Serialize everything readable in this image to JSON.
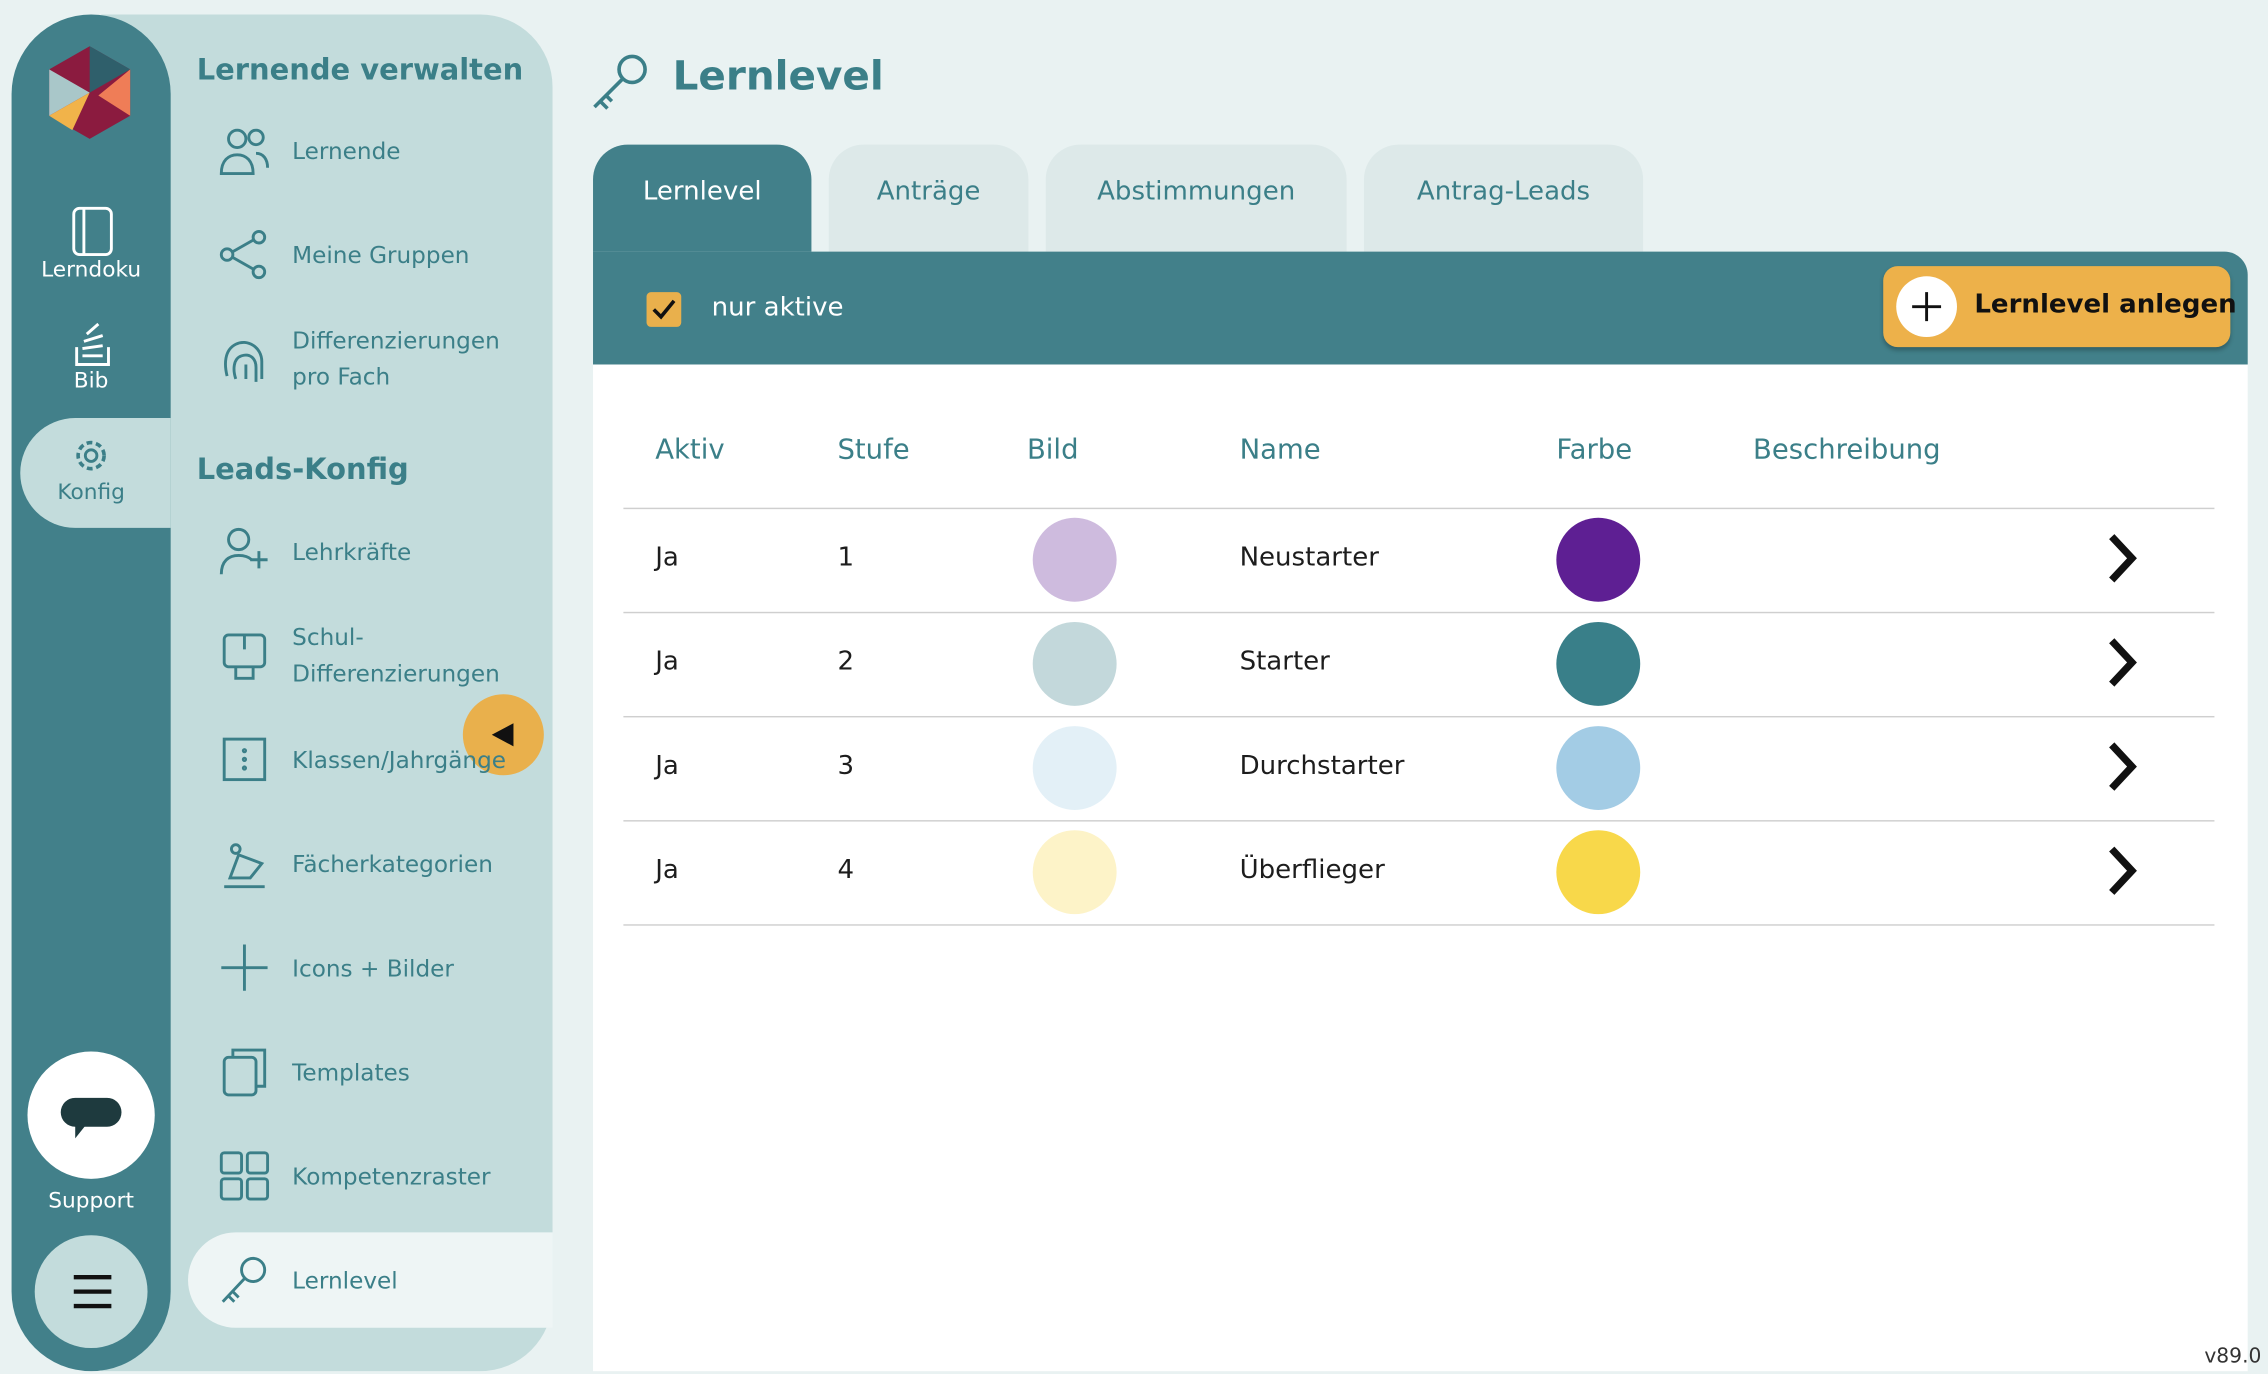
{
  "nav_rail": {
    "items": [
      "Lerndoku",
      "Bib",
      "Konfig"
    ],
    "support": "Support"
  },
  "sidebar": {
    "sections": [
      {
        "title": "Lernende verwalten",
        "items": [
          "Lernende",
          "Meine Gruppen",
          "Differenzierungen pro Fach"
        ]
      },
      {
        "title": "Leads-Konfig",
        "items": [
          "Lehrkräfte",
          "Schul-Differenzierungen",
          "Klassen/Jahrgänge",
          "Fächerkategorien",
          "Icons + Bilder",
          "Templates",
          "Kompetenzraster",
          "Lernlevel"
        ]
      }
    ]
  },
  "header": {
    "title": "Lernlevel"
  },
  "tabs": [
    "Lernlevel",
    "Anträge",
    "Abstimmungen",
    "Antrag-Leads"
  ],
  "toolbar": {
    "filter": "nur aktive",
    "button": "Lernlevel anlegen"
  },
  "table": {
    "columns": [
      "Aktiv",
      "Stufe",
      "Bild",
      "Name",
      "Farbe",
      "Beschreibung"
    ],
    "rows": [
      {
        "aktiv": "Ja",
        "stufe": 1,
        "name": "Neustarter",
        "farbe": "#5e1f93"
      },
      {
        "aktiv": "Ja",
        "stufe": 2,
        "name": "Starter",
        "farbe": "#397f89"
      },
      {
        "aktiv": "Ja",
        "stufe": 3,
        "name": "Durchstarter",
        "farbe": "#a3cce5"
      },
      {
        "aktiv": "Ja",
        "stufe": 4,
        "name": "Überflieger",
        "farbe": "#f8d84a"
      }
    ]
  },
  "version": "v89.0"
}
